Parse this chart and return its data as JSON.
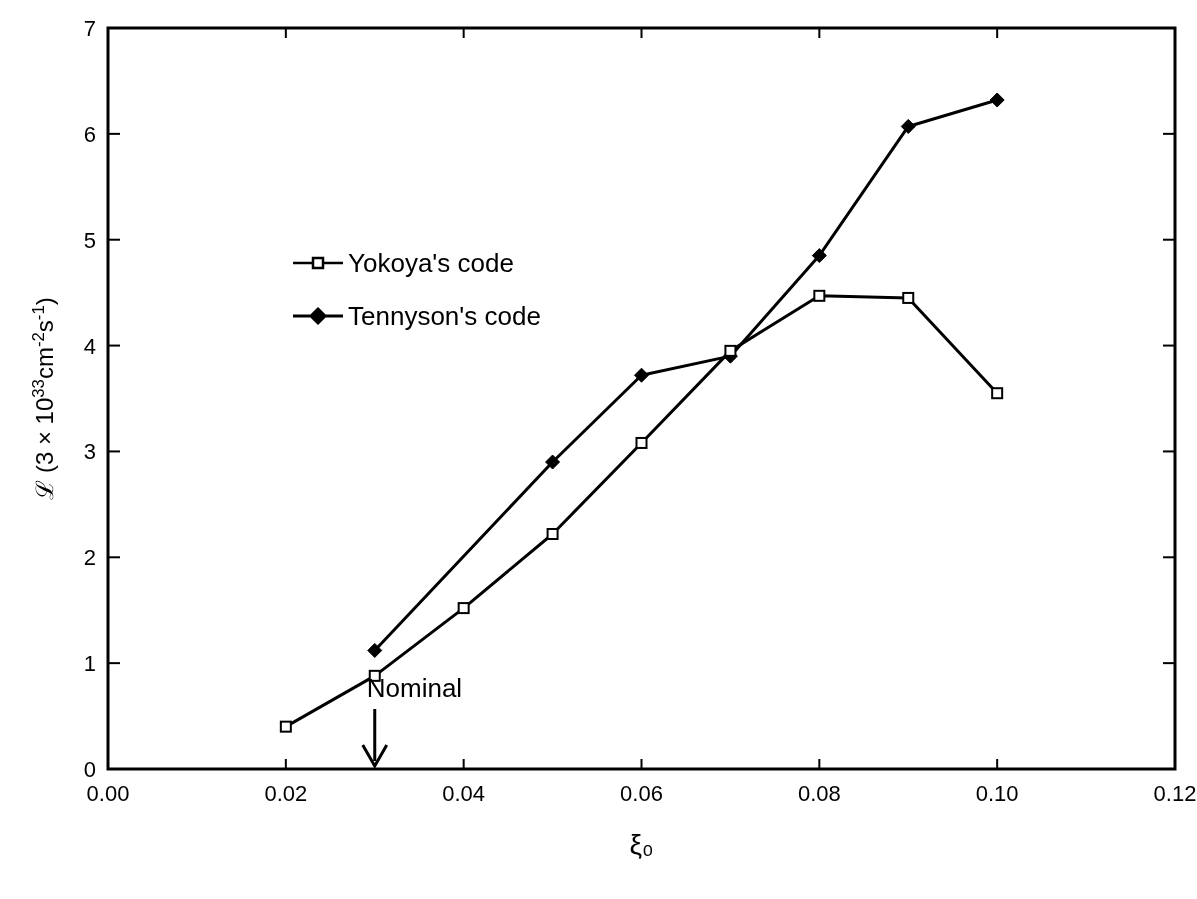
{
  "chart_data": {
    "type": "line",
    "xlabel": "ξ₀",
    "ylabel": "ℒ (3 × 10$^{33}$cm$^{-2}$s$^{-1}$)",
    "x": [
      0.02,
      0.03,
      0.04,
      0.05,
      0.06,
      0.07,
      0.08,
      0.09,
      0.1
    ],
    "series": [
      {
        "name": "Yokoya's code",
        "color": "#000000",
        "marker": "square",
        "values": [
          0.4,
          0.88,
          1.52,
          2.22,
          3.08,
          3.95,
          4.47,
          4.45,
          3.55
        ]
      },
      {
        "name": "Tennyson's code",
        "color": "#000000",
        "marker": "diamond",
        "values": [
          null,
          1.12,
          null,
          2.9,
          3.72,
          3.9,
          4.85,
          6.07,
          6.32
        ]
      }
    ],
    "xlim": [
      0,
      0.12
    ],
    "xticks": [
      {
        "value": 0,
        "label": "0.00"
      },
      {
        "value": 0.02,
        "label": "0.02"
      },
      {
        "value": 0.04,
        "label": "0.04"
      },
      {
        "value": 0.06,
        "label": "0.06"
      },
      {
        "value": 0.08,
        "label": "0.08"
      },
      {
        "value": 0.1,
        "label": "0.10"
      },
      {
        "value": 0.12,
        "label": "0.12"
      }
    ],
    "ylim": [
      0,
      7
    ],
    "yticks": [
      0,
      1,
      2,
      3,
      4,
      5,
      6,
      7
    ],
    "annotations": [
      "Nominal"
    ],
    "legend": "top left",
    "line_style": "solid",
    "grid": false
  }
}
